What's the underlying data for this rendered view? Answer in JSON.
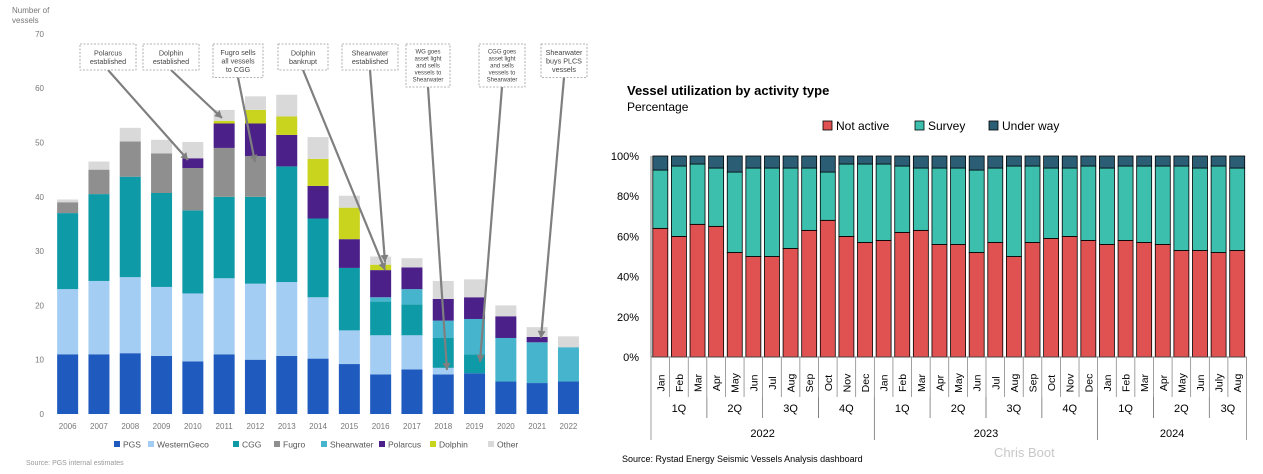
{
  "left_chart": {
    "ylabel_line1": "Number of",
    "ylabel_line2": "vessels",
    "source": "Source: PGS internal estimates",
    "annotations": [
      {
        "lines": [
          "Polarcus",
          "established"
        ]
      },
      {
        "lines": [
          "Dolphin",
          "established"
        ]
      },
      {
        "lines": [
          "Fugro sells",
          "all vessels",
          "to CGG"
        ]
      },
      {
        "lines": [
          "Dolphin",
          "bankrupt"
        ]
      },
      {
        "lines": [
          "Shearwater",
          "established"
        ]
      },
      {
        "lines": [
          "WG goes",
          "asset light",
          "and sells",
          "vessels to",
          "Shearwater"
        ]
      },
      {
        "lines": [
          "CGG goes",
          "asset light",
          "and sells",
          "vessels to",
          "Shearwater"
        ]
      },
      {
        "lines": [
          "Shearwater",
          "buys PLCS",
          "vessels"
        ]
      }
    ]
  },
  "right_chart": {
    "title": "Vessel utilization by activity type",
    "subtitle": "Percentage",
    "source": "Source: Rystad Energy Seismic Vessels Analysis dashboard",
    "watermark": "Chris Boot"
  },
  "chart_data": [
    {
      "type": "bar",
      "stacked": true,
      "ylabel": "Number of vessels",
      "ylim": [
        0,
        70
      ],
      "yticks": [
        0,
        10,
        20,
        30,
        40,
        50,
        60,
        70
      ],
      "grid": false,
      "legend_position": "bottom",
      "categories": [
        "2006",
        "2007",
        "2008",
        "2009",
        "2010",
        "2011",
        "2012",
        "2013",
        "2014",
        "2015",
        "2016",
        "2017",
        "2018",
        "2019",
        "2020",
        "2021",
        "2022"
      ],
      "series": [
        {
          "name": "PGS",
          "color": "#1f5bbf",
          "values": [
            11,
            11,
            11.2,
            10.7,
            9.7,
            11,
            10,
            10.7,
            10.2,
            9.2,
            7.3,
            8.2,
            7.3,
            7.5,
            6,
            5.7,
            6
          ]
        },
        {
          "name": "WesternGeco",
          "color": "#a3cdf2",
          "values": [
            12,
            13.5,
            14,
            12.7,
            12.5,
            14,
            14,
            13.6,
            11.3,
            6.2,
            7.2,
            6.3,
            1.2,
            0,
            0,
            0,
            0
          ]
        },
        {
          "name": "CGG",
          "color": "#0f9aa8",
          "values": [
            14,
            16,
            18.5,
            17.3,
            15.3,
            15,
            16,
            21.3,
            14.5,
            11.5,
            6.2,
            5.7,
            5.5,
            3.5,
            0,
            0,
            0
          ]
        },
        {
          "name": "Fugro",
          "color": "#8f8f8f",
          "values": [
            2,
            4.5,
            6.5,
            7.3,
            7.8,
            9,
            7.5,
            0,
            0,
            0,
            0,
            0,
            0,
            0,
            0,
            0,
            0
          ]
        },
        {
          "name": "Shearwater",
          "color": "#45b4cc",
          "values": [
            0,
            0,
            0,
            0,
            0,
            0,
            0,
            0,
            0,
            0,
            0.8,
            2.8,
            3.2,
            6.5,
            8,
            7.5,
            6.3
          ]
        },
        {
          "name": "Polarcus",
          "color": "#4b2089",
          "values": [
            0,
            0,
            0,
            0,
            1.8,
            4.5,
            6,
            5.8,
            6,
            5.3,
            5,
            4,
            4,
            4,
            4,
            1,
            0
          ]
        },
        {
          "name": "Dolphin",
          "color": "#c8d41e",
          "values": [
            0,
            0,
            0,
            0,
            0,
            0.5,
            2.5,
            3.4,
            5,
            5.8,
            1,
            0,
            0,
            0,
            0,
            0,
            0
          ]
        },
        {
          "name": "Other",
          "color": "#d9d9d9",
          "values": [
            0.5,
            1.5,
            2.5,
            2.5,
            3,
            2,
            2.5,
            4,
            4,
            2.2,
            1.5,
            1.7,
            3.3,
            3.3,
            2,
            1.8,
            2
          ]
        }
      ]
    },
    {
      "type": "bar",
      "stacked": true,
      "title": "Vessel utilization by activity type",
      "subtitle": "Percentage",
      "ylim": [
        0,
        100
      ],
      "yticks": [
        "0%",
        "20%",
        "40%",
        "60%",
        "80%",
        "100%"
      ],
      "grid": false,
      "legend_position": "top",
      "categories": [
        "Jan",
        "Feb",
        "Mar",
        "Apr",
        "May",
        "Jun",
        "Jul",
        "Aug",
        "Sep",
        "Oct",
        "Nov",
        "Dec",
        "Jan",
        "Feb",
        "Mar",
        "Apr",
        "May",
        "Jun",
        "Jul",
        "Aug",
        "Sep",
        "Oct",
        "Nov",
        "Dec",
        "Jan",
        "Feb",
        "Mar",
        "Apr",
        "May",
        "Jun",
        "July",
        "Aug"
      ],
      "quarters": [
        {
          "label": "1Q",
          "start": 0,
          "end": 3
        },
        {
          "label": "2Q",
          "start": 3,
          "end": 6
        },
        {
          "label": "3Q",
          "start": 6,
          "end": 9
        },
        {
          "label": "4Q",
          "start": 9,
          "end": 12
        },
        {
          "label": "1Q",
          "start": 12,
          "end": 15
        },
        {
          "label": "2Q",
          "start": 15,
          "end": 18
        },
        {
          "label": "3Q",
          "start": 18,
          "end": 21
        },
        {
          "label": "4Q",
          "start": 21,
          "end": 24
        },
        {
          "label": "1Q",
          "start": 24,
          "end": 27
        },
        {
          "label": "2Q",
          "start": 27,
          "end": 30
        },
        {
          "label": "3Q",
          "start": 30,
          "end": 32
        }
      ],
      "years": [
        {
          "label": "2022",
          "start": 0,
          "end": 12
        },
        {
          "label": "2023",
          "start": 12,
          "end": 24
        },
        {
          "label": "2024",
          "start": 24,
          "end": 32
        }
      ],
      "series": [
        {
          "name": "Not active",
          "color": "#e05252",
          "values": [
            64,
            60,
            66,
            65,
            52,
            50,
            50,
            54,
            63,
            68,
            60,
            57,
            58,
            62,
            63,
            56,
            56,
            52,
            57,
            50,
            57,
            59,
            60,
            58,
            56,
            58,
            57,
            56,
            53,
            53,
            52,
            53
          ]
        },
        {
          "name": "Survey",
          "color": "#3dbfad",
          "values": [
            29,
            35,
            30,
            29,
            40,
            44,
            44,
            40,
            31,
            24,
            36,
            39,
            38,
            33,
            31,
            38,
            38,
            41,
            37,
            45,
            38,
            35,
            34,
            37,
            38,
            37,
            38,
            39,
            42,
            41,
            43,
            41
          ]
        },
        {
          "name": "Under way",
          "color": "#2b5d75",
          "values": [
            7,
            5,
            4,
            6,
            8,
            6,
            6,
            6,
            6,
            8,
            4,
            4,
            4,
            5,
            6,
            6,
            6,
            7,
            6,
            5,
            5,
            6,
            6,
            5,
            6,
            5,
            5,
            5,
            5,
            6,
            5,
            6
          ]
        }
      ]
    }
  ]
}
